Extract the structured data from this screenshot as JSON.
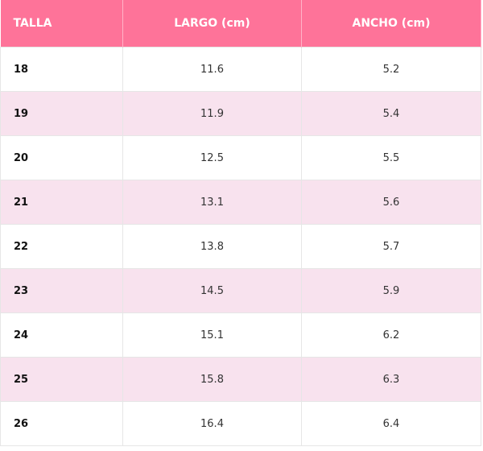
{
  "table": {
    "header": [
      "TALLA",
      "LARGO (cm)",
      "ANCHO (cm)"
    ],
    "rows": [
      [
        "18",
        "11.6",
        "5.2"
      ],
      [
        "19",
        "11.9",
        "5.4"
      ],
      [
        "20",
        "12.5",
        "5.5"
      ],
      [
        "21",
        "13.1",
        "5.6"
      ],
      [
        "22",
        "13.8",
        "5.7"
      ],
      [
        "23",
        "14.5",
        "5.9"
      ],
      [
        "24",
        "15.1",
        "6.2"
      ],
      [
        "25",
        "15.8",
        "6.3"
      ],
      [
        "26",
        "16.4",
        "6.4"
      ]
    ]
  }
}
